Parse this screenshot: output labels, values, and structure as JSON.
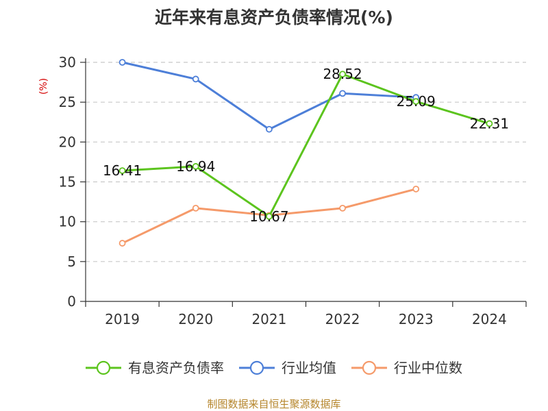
{
  "chart_data": {
    "type": "line",
    "title": "近年来有息资产负债率情况(%)",
    "ylabel": "(%)",
    "xlabel": "",
    "categories": [
      "2019",
      "2020",
      "2021",
      "2022",
      "2023",
      "2024"
    ],
    "ylim": [
      0,
      30
    ],
    "yticks": [
      0,
      5,
      10,
      15,
      20,
      25,
      30
    ],
    "grid": true,
    "legend_position": "bottom",
    "series": [
      {
        "name": "有息资产负债率",
        "color": "#5cc41e",
        "values": [
          16.41,
          16.94,
          10.67,
          28.52,
          25.09,
          22.31
        ],
        "labels": [
          "16.41",
          "16.94",
          "10.67",
          "28.52",
          "25.09",
          "22.31"
        ]
      },
      {
        "name": "行业均值",
        "color": "#4d7fd8",
        "values": [
          30.0,
          27.9,
          21.6,
          26.1,
          25.6,
          null
        ]
      },
      {
        "name": "行业中位数",
        "color": "#f59a6a",
        "values": [
          7.3,
          11.7,
          10.8,
          11.7,
          14.1,
          null
        ]
      }
    ],
    "source": "制图数据来自恒生聚源数据库"
  }
}
